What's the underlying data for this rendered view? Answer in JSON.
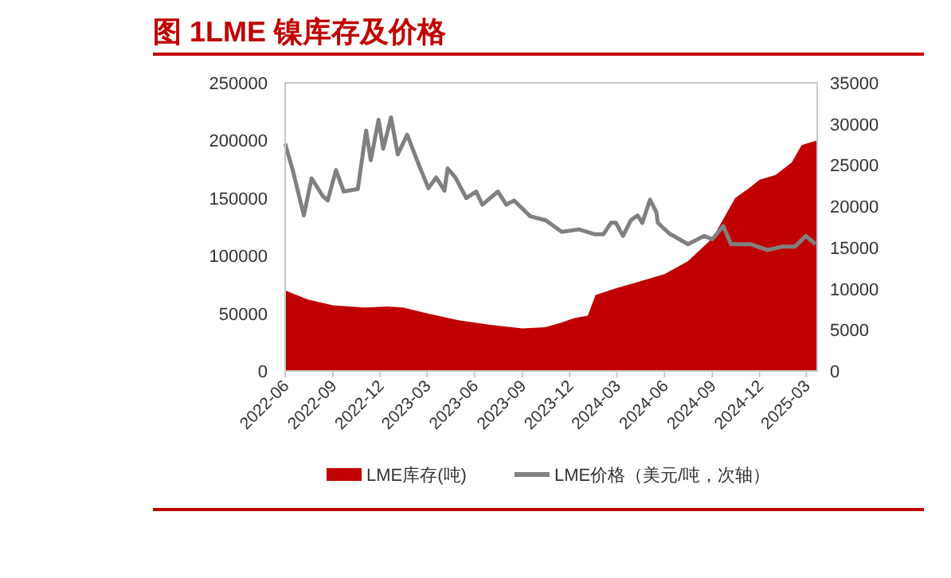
{
  "chart_data": {
    "type": "area",
    "title": "图 1LME 镍库存及价格",
    "xlim": [
      "2022-06-01",
      "2025-03-22"
    ],
    "xticks": [
      {
        "value": "2022-06-01",
        "label": "2022-06"
      },
      {
        "value": "2022-09-01",
        "label": "2022-09"
      },
      {
        "value": "2022-12-01",
        "label": "2022-12"
      },
      {
        "value": "2023-03-01",
        "label": "2023-03"
      },
      {
        "value": "2023-06-01",
        "label": "2023-06"
      },
      {
        "value": "2023-09-01",
        "label": "2023-09"
      },
      {
        "value": "2023-12-01",
        "label": "2023-12"
      },
      {
        "value": "2024-03-01",
        "label": "2024-03"
      },
      {
        "value": "2024-06-01",
        "label": "2024-06"
      },
      {
        "value": "2024-09-01",
        "label": "2024-09"
      },
      {
        "value": "2024-12-01",
        "label": "2024-12"
      },
      {
        "value": "2025-03-01",
        "label": "2025-03"
      }
    ],
    "ylim": [
      0,
      250000
    ],
    "yticks": [
      0,
      50000,
      100000,
      150000,
      200000,
      250000
    ],
    "y2lim": [
      0,
      35000
    ],
    "y2ticks": [
      0,
      5000,
      10000,
      15000,
      20000,
      25000,
      30000,
      35000
    ],
    "grid": false,
    "legend": "bottom",
    "series": [
      {
        "name": "LME库存(吨)",
        "color": "#c00000",
        "x": [
          "2022-06-01",
          "2022-07-15",
          "2022-09-01",
          "2022-11-01",
          "2022-12-15",
          "2023-01-15",
          "2023-03-01",
          "2023-05-01",
          "2023-07-01",
          "2023-09-01",
          "2023-10-15",
          "2023-11-15",
          "2023-12-10",
          "2024-01-05",
          "2024-01-20",
          "2024-03-01",
          "2024-04-01",
          "2024-06-01",
          "2024-07-15",
          "2024-09-01",
          "2024-10-15",
          "2024-11-15",
          "2024-12-01",
          "2025-01-01",
          "2025-02-01",
          "2025-02-20",
          "2025-03-22"
        ],
        "values": [
          70000,
          62000,
          57000,
          55000,
          56000,
          55000,
          50000,
          44000,
          40000,
          37000,
          38000,
          42000,
          46000,
          48000,
          66000,
          72000,
          76000,
          84000,
          95000,
          115000,
          150000,
          160000,
          166000,
          170000,
          181000,
          196000,
          200000
        ]
      },
      {
        "name": "LME价格（美元/吨，次轴）",
        "type": "line",
        "axis": "y2",
        "color": "#808080",
        "x": [
          "2022-06-01",
          "2022-06-16",
          "2022-07-07",
          "2022-07-22",
          "2022-08-13",
          "2022-08-22",
          "2022-09-07",
          "2022-09-22",
          "2022-10-19",
          "2022-11-04",
          "2022-11-13",
          "2022-11-28",
          "2022-12-07",
          "2022-12-22",
          "2023-01-04",
          "2023-01-22",
          "2023-02-12",
          "2023-03-04",
          "2023-03-19",
          "2023-04-04",
          "2023-04-10",
          "2023-04-25",
          "2023-05-16",
          "2023-06-04",
          "2023-06-16",
          "2023-07-16",
          "2023-08-01",
          "2023-08-16",
          "2023-09-16",
          "2023-10-16",
          "2023-11-16",
          "2023-12-19",
          "2024-01-19",
          "2024-02-04",
          "2024-02-19",
          "2024-02-28",
          "2024-03-13",
          "2024-03-28",
          "2024-04-10",
          "2024-04-19",
          "2024-05-04",
          "2024-05-16",
          "2024-05-19",
          "2024-06-10",
          "2024-07-16",
          "2024-08-16",
          "2024-09-01",
          "2024-09-22",
          "2024-10-07",
          "2024-11-13",
          "2024-12-16",
          "2025-01-13",
          "2025-02-07",
          "2025-02-28",
          "2025-03-19"
        ],
        "values": [
          27600,
          24300,
          18900,
          23400,
          21200,
          20700,
          24400,
          21800,
          22100,
          29200,
          25600,
          30500,
          27000,
          30800,
          26300,
          28700,
          25300,
          22200,
          23500,
          21900,
          24600,
          23500,
          21000,
          21800,
          20200,
          21800,
          20200,
          20700,
          18800,
          18300,
          16900,
          17200,
          16600,
          16600,
          18000,
          18000,
          16400,
          18300,
          18900,
          18000,
          20800,
          19300,
          18000,
          16700,
          15400,
          16400,
          16000,
          17600,
          15400,
          15400,
          14700,
          15100,
          15100,
          16400,
          15400
        ]
      }
    ]
  }
}
